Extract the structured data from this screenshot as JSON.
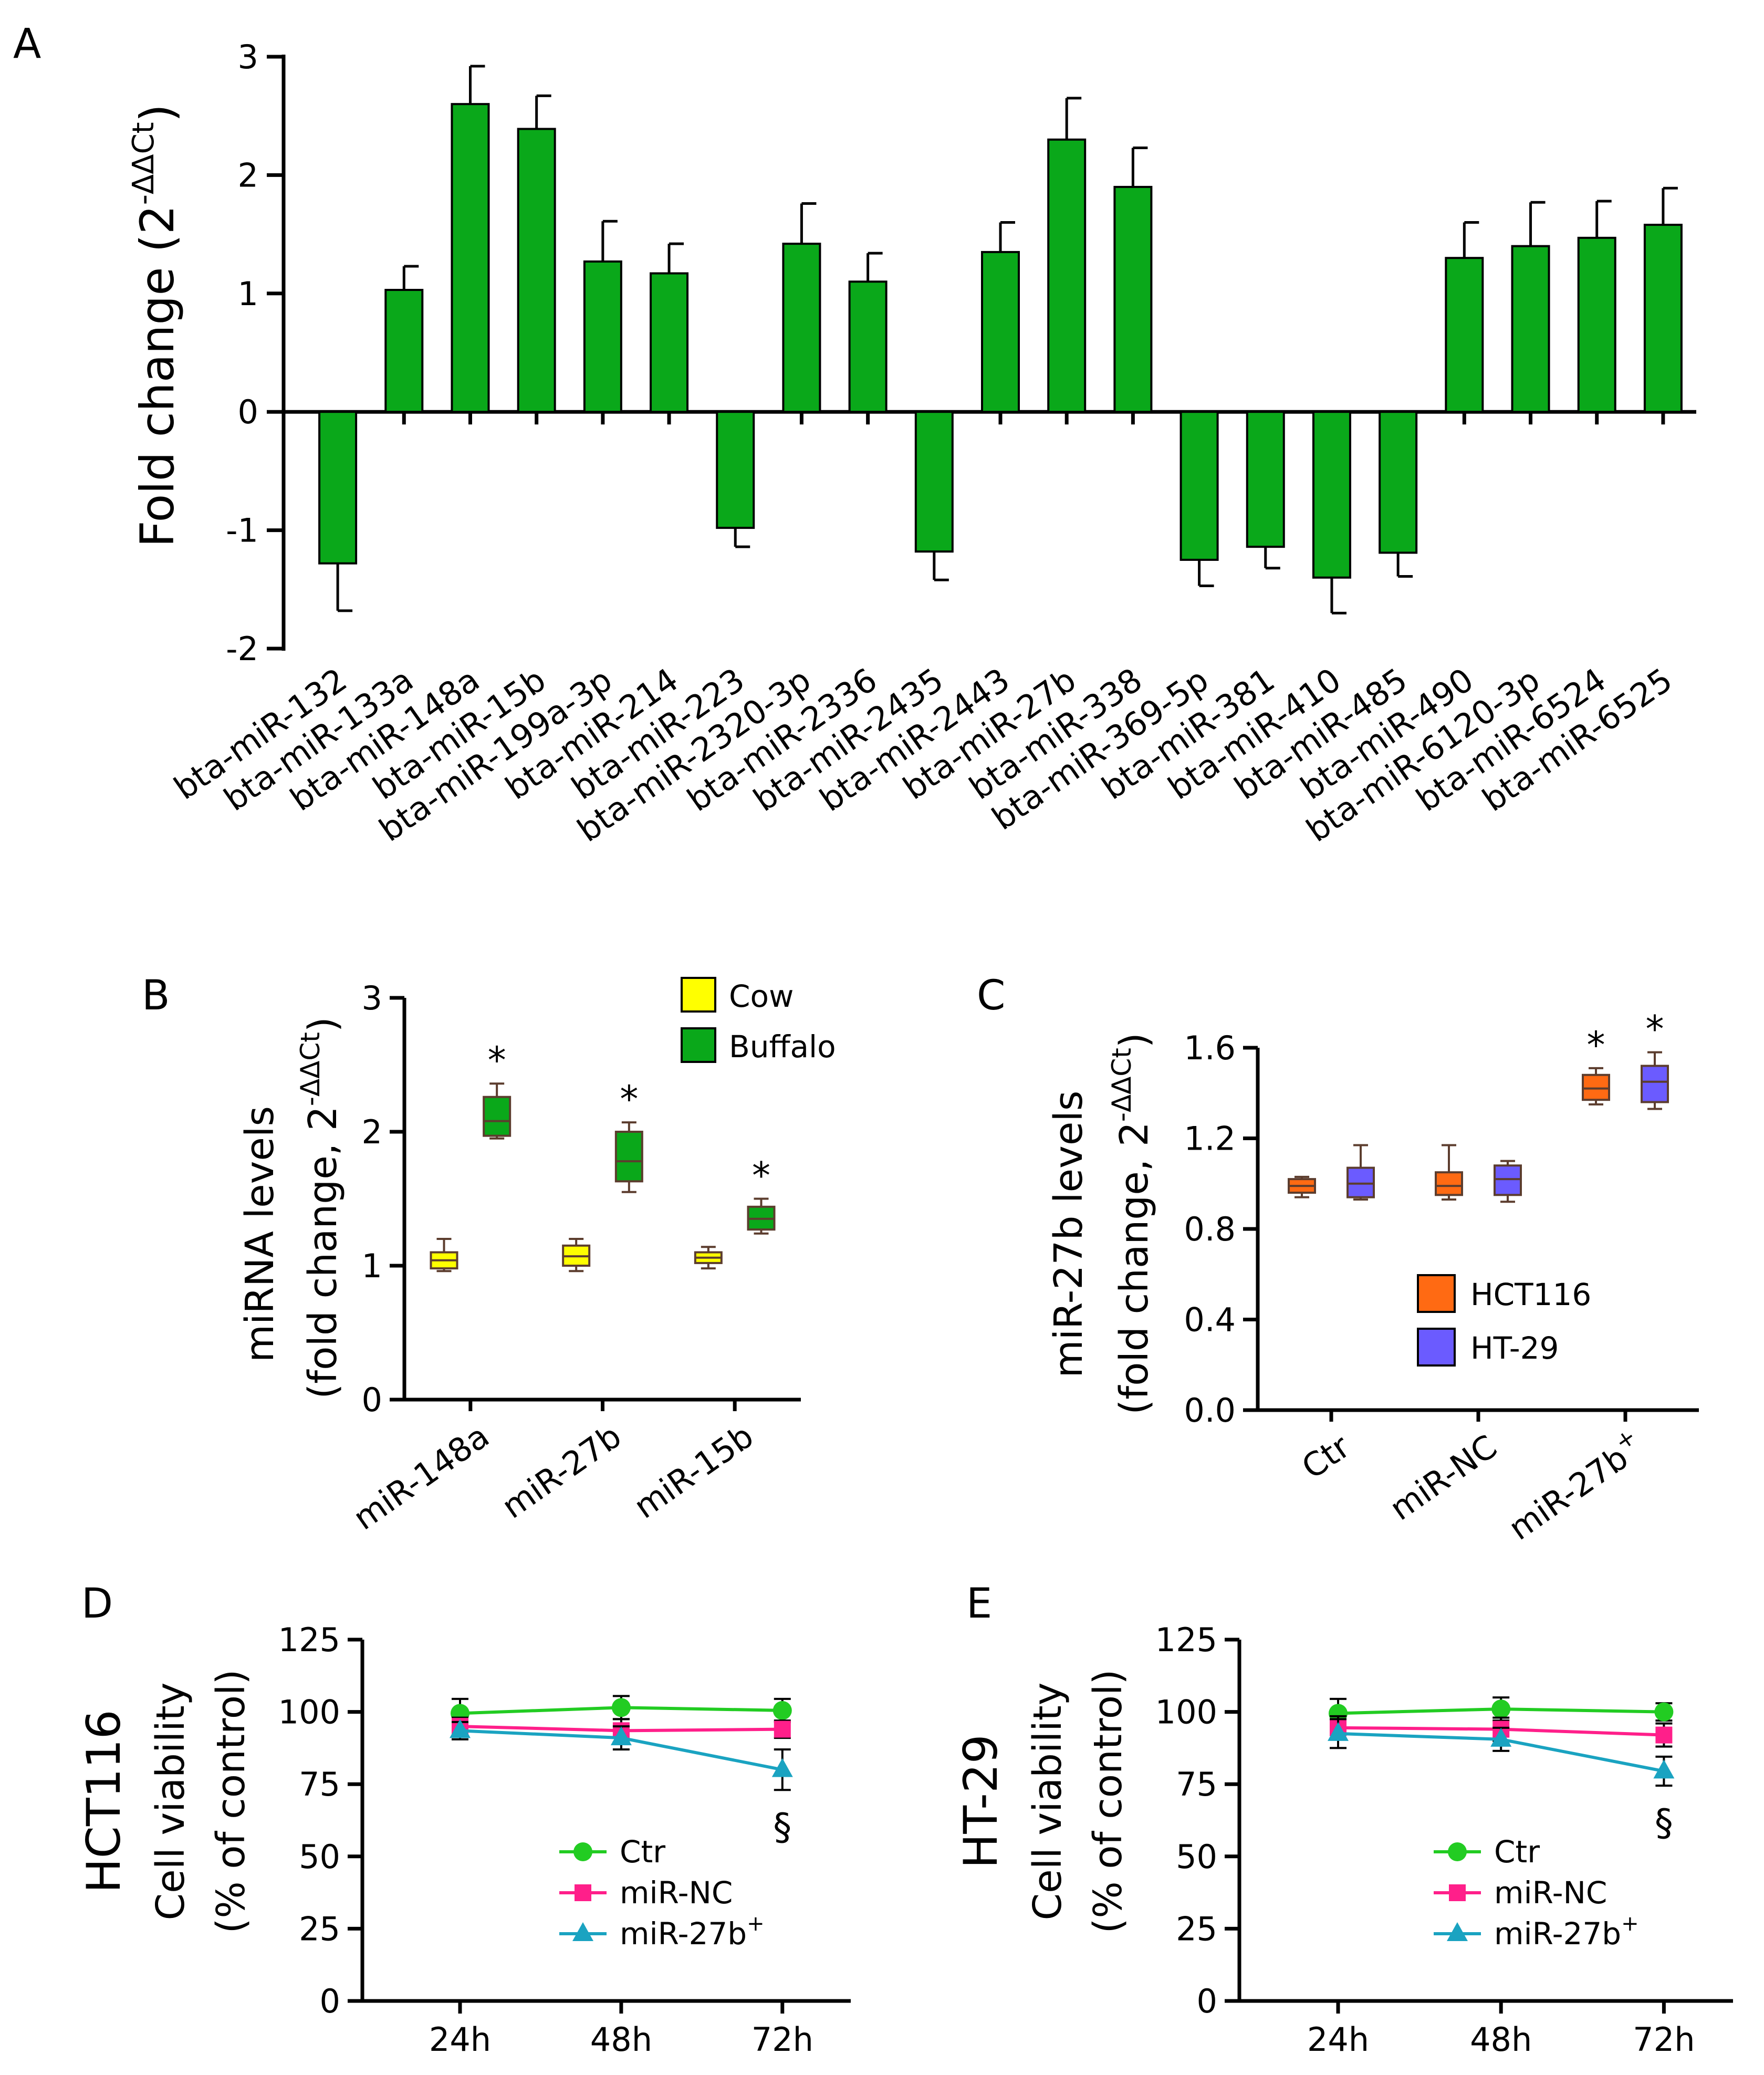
{
  "chart_data": [
    {
      "id": "A",
      "panel_label": "A",
      "type": "bar",
      "ylabel_main": "Fold change (2",
      "ylabel_sup": "-ΔΔCt",
      "ylabel_close": ")",
      "ylim": [
        -2,
        3
      ],
      "yticks": [
        -2,
        -1,
        0,
        1,
        2,
        3
      ],
      "bar_color": "#0aa81a",
      "categories": [
        "bta-miR-132",
        "bta-miR-133a",
        "bta-miR-148a",
        "bta-miR-15b",
        "bta-miR-199a-3p",
        "bta-miR-214",
        "bta-miR-223",
        "bta-miR-2320-3p",
        "bta-miR-2336",
        "bta-miR-2435",
        "bta-miR-2443",
        "bta-miR-27b",
        "bta-miR-338",
        "bta-miR-369-5p",
        "bta-miR-381",
        "bta-miR-410",
        "bta-miR-485",
        "bta-miR-490",
        "bta-miR-6120-3p",
        "bta-miR-6524",
        "bta-miR-6525"
      ],
      "values": [
        -1.28,
        1.03,
        2.6,
        2.39,
        1.27,
        1.17,
        -0.98,
        1.42,
        1.1,
        -1.18,
        1.35,
        2.3,
        1.9,
        -1.25,
        -1.14,
        -1.4,
        -1.19,
        1.3,
        1.4,
        1.47,
        1.58
      ],
      "errors": [
        0.4,
        0.2,
        0.32,
        0.28,
        0.34,
        0.25,
        0.16,
        0.34,
        0.24,
        0.24,
        0.25,
        0.35,
        0.33,
        0.22,
        0.18,
        0.3,
        0.2,
        0.3,
        0.37,
        0.31,
        0.31
      ]
    },
    {
      "id": "B",
      "panel_label": "B",
      "type": "box",
      "ylabel_line1": "miRNA levels",
      "ylabel_line2": "(fold change, 2",
      "ylabel_sup": "-ΔΔCt",
      "ylabel_close": ")",
      "ylim": [
        0,
        3
      ],
      "yticks": [
        0,
        1,
        2,
        3
      ],
      "categories": [
        "miR-148a",
        "miR-27b",
        "miR-15b"
      ],
      "series": [
        {
          "name": "Cow",
          "color": "#ffff00",
          "boxes": [
            {
              "min": 0.96,
              "q1": 0.98,
              "median": 1.04,
              "q3": 1.1,
              "max": 1.2
            },
            {
              "min": 0.96,
              "q1": 1.0,
              "median": 1.07,
              "q3": 1.15,
              "max": 1.2
            },
            {
              "min": 0.98,
              "q1": 1.02,
              "median": 1.06,
              "q3": 1.1,
              "max": 1.14
            }
          ]
        },
        {
          "name": "Buffalo",
          "color": "#0aa81a",
          "boxes": [
            {
              "min": 1.95,
              "q1": 1.97,
              "median": 2.08,
              "q3": 2.26,
              "max": 2.36
            },
            {
              "min": 1.55,
              "q1": 1.63,
              "median": 1.78,
              "q3": 2.0,
              "max": 2.07
            },
            {
              "min": 1.24,
              "q1": 1.27,
              "median": 1.35,
              "q3": 1.44,
              "max": 1.5
            }
          ]
        }
      ],
      "significance": [
        "*",
        "*",
        "*"
      ],
      "legend": [
        "Cow",
        "Buffalo"
      ]
    },
    {
      "id": "C",
      "panel_label": "C",
      "type": "box",
      "ylabel_line1": "miR-27b levels",
      "ylabel_line2": "(fold change, 2",
      "ylabel_sup": "-ΔΔCt",
      "ylabel_close": ")",
      "ylim": [
        0,
        1.6
      ],
      "yticks": [
        0.0,
        0.4,
        0.8,
        1.2,
        1.6
      ],
      "ytick_labels": [
        "0.0",
        "0.4",
        "0.8",
        "1.2",
        "1.6"
      ],
      "categories": [
        "Ctr",
        "miR-NC",
        "miR-27b"
      ],
      "category_sups": [
        "",
        "",
        "+"
      ],
      "series": [
        {
          "name": "HCT116",
          "color": "#ff6a13",
          "boxes": [
            {
              "min": 0.94,
              "q1": 0.96,
              "median": 0.99,
              "q3": 1.02,
              "max": 1.03
            },
            {
              "min": 0.93,
              "q1": 0.95,
              "median": 0.99,
              "q3": 1.05,
              "max": 1.17
            },
            {
              "min": 1.35,
              "q1": 1.37,
              "median": 1.42,
              "q3": 1.48,
              "max": 1.51
            }
          ]
        },
        {
          "name": "HT-29",
          "color": "#6b5bff",
          "boxes": [
            {
              "min": 0.93,
              "q1": 0.94,
              "median": 1.0,
              "q3": 1.07,
              "max": 1.17
            },
            {
              "min": 0.92,
              "q1": 0.95,
              "median": 1.02,
              "q3": 1.08,
              "max": 1.1
            },
            {
              "min": 1.33,
              "q1": 1.36,
              "median": 1.45,
              "q3": 1.52,
              "max": 1.58
            }
          ]
        }
      ],
      "significance": [
        "",
        "",
        "*"
      ],
      "legend": [
        "HCT116",
        "HT-29"
      ]
    },
    {
      "id": "D",
      "panel_label": "D",
      "type": "line",
      "side_title": "HCT116",
      "ylabel_line1": "Cell viability",
      "ylabel_line2": "(% of control)",
      "ylim": [
        0,
        125
      ],
      "yticks": [
        0,
        25,
        50,
        75,
        100,
        125
      ],
      "categories": [
        "24h",
        "48h",
        "72h"
      ],
      "series": [
        {
          "name": "Ctr",
          "color": "#22cc22",
          "marker": "circle",
          "values": [
            99.5,
            101.5,
            100.5
          ],
          "errors": [
            5,
            4,
            4
          ]
        },
        {
          "name": "miR-NC",
          "color": "#ff1f8a",
          "marker": "square",
          "values": [
            95,
            93.5,
            94
          ],
          "errors": [
            3,
            4,
            3
          ]
        },
        {
          "name": "miR-27b",
          "sup": "+",
          "color": "#1aa3c1",
          "marker": "triangle",
          "values": [
            93.5,
            91,
            80
          ],
          "errors": [
            3,
            4,
            7
          ]
        }
      ],
      "annotation": "§",
      "legend": [
        "Ctr",
        "miR-NC",
        "miR-27b+"
      ]
    },
    {
      "id": "E",
      "panel_label": "E",
      "type": "line",
      "side_title": "HT-29",
      "ylabel_line1": "Cell viability",
      "ylabel_line2": "(% of control)",
      "ylim": [
        0,
        125
      ],
      "yticks": [
        0,
        25,
        50,
        75,
        100,
        125
      ],
      "categories": [
        "24h",
        "48h",
        "72h"
      ],
      "series": [
        {
          "name": "Ctr",
          "color": "#22cc22",
          "marker": "circle",
          "values": [
            99.5,
            101,
            100
          ],
          "errors": [
            5,
            4,
            3
          ]
        },
        {
          "name": "miR-NC",
          "color": "#ff1f8a",
          "marker": "square",
          "values": [
            94.5,
            94,
            92
          ],
          "errors": [
            4,
            4,
            4
          ]
        },
        {
          "name": "miR-27b",
          "sup": "+",
          "color": "#1aa3c1",
          "marker": "triangle",
          "values": [
            92.5,
            90.5,
            79.5
          ],
          "errors": [
            5,
            4,
            5
          ]
        }
      ],
      "annotation": "§",
      "legend": [
        "Ctr",
        "miR-NC",
        "miR-27b+"
      ]
    }
  ]
}
